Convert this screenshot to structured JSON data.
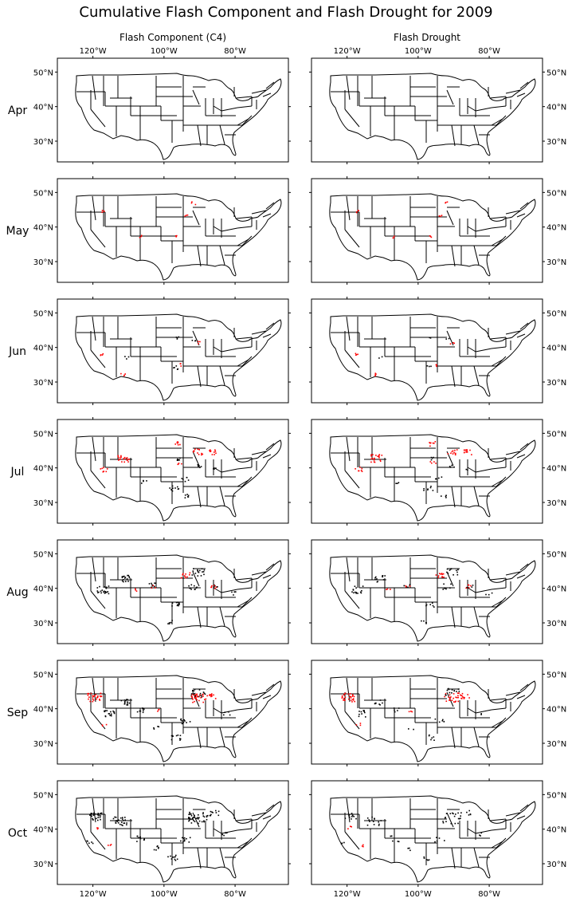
{
  "title": "Cumulative Flash Component and Flash Drought for 2009",
  "columns": [
    "Flash Component (C4)",
    "Flash Drought"
  ],
  "rows": [
    "Apr",
    "May",
    "Jun",
    "Jul",
    "Aug",
    "Sep",
    "Oct"
  ],
  "lon_ticks": [
    "120°W",
    "100°W",
    "80°W"
  ],
  "lat_ticks": [
    "50°N",
    "40°N",
    "30°N"
  ],
  "map_extent": {
    "lon": [
      -130,
      -65
    ],
    "lat": [
      24,
      54
    ]
  },
  "colors": {
    "new_event": "#ff0000",
    "cumulative": "#000000",
    "borders": "#000000"
  },
  "legend": "none"
}
